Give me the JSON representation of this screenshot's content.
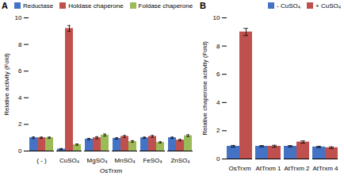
{
  "chart_data": [
    {
      "type": "bar",
      "title": "A",
      "categories": [
        "( - )",
        "CuSO₄",
        "MgSO₄",
        "MnSO₄",
        "FeSO₄",
        "ZnSO₄"
      ],
      "xlabel": "OsTrxm",
      "ylabel": "Relative activity (Fold)",
      "ylim": [
        0,
        10
      ],
      "yticks": [
        0,
        2,
        4,
        6,
        8,
        10
      ],
      "legend": "upper left",
      "series": [
        {
          "name": "Reductase",
          "color": "#4472C4",
          "values": [
            1.0,
            0.15,
            0.9,
            0.95,
            1.0,
            1.0
          ],
          "errors": [
            0.06,
            0.04,
            0.05,
            0.05,
            0.05,
            0.05
          ]
        },
        {
          "name": "Holdase chaperone",
          "color": "#C0504D",
          "values": [
            1.0,
            9.2,
            1.0,
            1.1,
            1.1,
            0.82
          ],
          "errors": [
            0.05,
            0.22,
            0.08,
            0.07,
            0.07,
            0.06
          ]
        },
        {
          "name": "Foldase chaperone",
          "color": "#9BBB59",
          "values": [
            1.0,
            0.48,
            1.2,
            0.72,
            0.65,
            1.15
          ],
          "errors": [
            0.05,
            0.05,
            0.08,
            0.06,
            0.05,
            0.07
          ]
        }
      ]
    },
    {
      "type": "bar",
      "title": "B",
      "categories": [
        "OsTrxm",
        "AtTrxm 1",
        "AtTrxm 2",
        "AtTrxm 4"
      ],
      "ylabel": "Relative chaperone activity (Fold)",
      "ylim": [
        0,
        10
      ],
      "yticks": [
        0,
        2,
        4,
        6,
        8,
        10
      ],
      "legend": "upper right",
      "series": [
        {
          "name": "- CuSO₄",
          "color": "#4472C4",
          "values": [
            0.9,
            0.9,
            0.9,
            0.85
          ],
          "errors": [
            0.06,
            0.05,
            0.05,
            0.05
          ]
        },
        {
          "name": "+ CuSO₄",
          "color": "#C0504D",
          "values": [
            9.0,
            0.9,
            1.2,
            0.8
          ],
          "errors": [
            0.25,
            0.07,
            0.08,
            0.06
          ]
        }
      ]
    }
  ]
}
